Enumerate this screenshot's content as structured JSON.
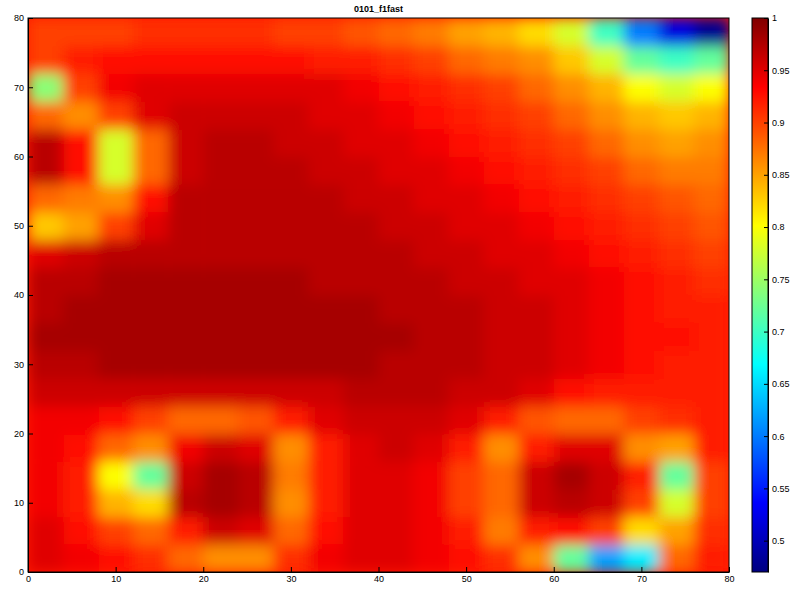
{
  "chart_data": {
    "type": "heatmap",
    "title": "0101_f1fast",
    "x": [
      2,
      6,
      10,
      14,
      18,
      22,
      26,
      30,
      34,
      38,
      42,
      46,
      50,
      54,
      58,
      62,
      66,
      70,
      74,
      78
    ],
    "y": [
      2,
      6,
      10,
      14,
      18,
      22,
      26,
      30,
      34,
      38,
      42,
      46,
      50,
      54,
      58,
      62,
      66,
      70,
      74,
      78
    ],
    "z": [
      [
        0.95,
        0.94,
        0.93,
        0.91,
        0.88,
        0.86,
        0.86,
        0.91,
        0.94,
        0.95,
        0.95,
        0.94,
        0.93,
        0.91,
        0.86,
        0.72,
        0.62,
        0.66,
        0.88,
        0.92
      ],
      [
        0.95,
        0.93,
        0.9,
        0.88,
        0.92,
        0.96,
        0.95,
        0.88,
        0.93,
        0.95,
        0.95,
        0.94,
        0.92,
        0.87,
        0.92,
        0.93,
        0.9,
        0.82,
        0.85,
        0.91
      ],
      [
        0.94,
        0.92,
        0.84,
        0.82,
        0.97,
        0.98,
        0.97,
        0.86,
        0.92,
        0.95,
        0.95,
        0.94,
        0.9,
        0.88,
        0.96,
        0.97,
        0.96,
        0.9,
        0.78,
        0.9
      ],
      [
        0.94,
        0.92,
        0.8,
        0.72,
        0.96,
        0.98,
        0.97,
        0.87,
        0.92,
        0.95,
        0.95,
        0.94,
        0.9,
        0.88,
        0.96,
        0.98,
        0.96,
        0.92,
        0.72,
        0.9
      ],
      [
        0.94,
        0.93,
        0.88,
        0.86,
        0.94,
        0.96,
        0.95,
        0.86,
        0.92,
        0.95,
        0.96,
        0.95,
        0.92,
        0.86,
        0.92,
        0.95,
        0.95,
        0.86,
        0.85,
        0.92
      ],
      [
        0.94,
        0.94,
        0.93,
        0.9,
        0.88,
        0.88,
        0.89,
        0.92,
        0.95,
        0.96,
        0.96,
        0.96,
        0.95,
        0.92,
        0.89,
        0.88,
        0.88,
        0.9,
        0.91,
        0.92
      ],
      [
        0.96,
        0.96,
        0.96,
        0.96,
        0.96,
        0.96,
        0.96,
        0.96,
        0.96,
        0.97,
        0.97,
        0.97,
        0.96,
        0.96,
        0.95,
        0.93,
        0.92,
        0.92,
        0.92,
        0.92
      ],
      [
        0.97,
        0.97,
        0.98,
        0.98,
        0.98,
        0.98,
        0.98,
        0.98,
        0.98,
        0.98,
        0.97,
        0.97,
        0.97,
        0.96,
        0.96,
        0.95,
        0.94,
        0.93,
        0.92,
        0.92
      ],
      [
        0.98,
        0.98,
        0.98,
        0.98,
        0.98,
        0.98,
        0.98,
        0.98,
        0.98,
        0.98,
        0.98,
        0.97,
        0.97,
        0.96,
        0.96,
        0.95,
        0.94,
        0.93,
        0.93,
        0.92
      ],
      [
        0.97,
        0.98,
        0.98,
        0.98,
        0.98,
        0.98,
        0.98,
        0.98,
        0.98,
        0.98,
        0.97,
        0.97,
        0.97,
        0.96,
        0.96,
        0.95,
        0.94,
        0.93,
        0.92,
        0.92
      ],
      [
        0.97,
        0.97,
        0.98,
        0.98,
        0.98,
        0.98,
        0.98,
        0.98,
        0.97,
        0.97,
        0.97,
        0.97,
        0.96,
        0.96,
        0.95,
        0.95,
        0.94,
        0.93,
        0.92,
        0.91
      ],
      [
        0.95,
        0.96,
        0.97,
        0.97,
        0.97,
        0.97,
        0.97,
        0.97,
        0.97,
        0.97,
        0.97,
        0.96,
        0.96,
        0.95,
        0.95,
        0.94,
        0.93,
        0.92,
        0.91,
        0.9
      ],
      [
        0.83,
        0.85,
        0.9,
        0.95,
        0.97,
        0.97,
        0.97,
        0.97,
        0.97,
        0.97,
        0.96,
        0.96,
        0.95,
        0.95,
        0.94,
        0.93,
        0.92,
        0.91,
        0.9,
        0.89
      ],
      [
        0.88,
        0.87,
        0.86,
        0.93,
        0.97,
        0.97,
        0.97,
        0.97,
        0.97,
        0.96,
        0.96,
        0.95,
        0.95,
        0.94,
        0.93,
        0.92,
        0.91,
        0.9,
        0.89,
        0.88
      ],
      [
        0.97,
        0.93,
        0.78,
        0.88,
        0.96,
        0.97,
        0.97,
        0.97,
        0.96,
        0.96,
        0.95,
        0.95,
        0.94,
        0.93,
        0.92,
        0.91,
        0.9,
        0.88,
        0.87,
        0.87
      ],
      [
        0.97,
        0.93,
        0.78,
        0.88,
        0.96,
        0.97,
        0.97,
        0.96,
        0.96,
        0.95,
        0.95,
        0.94,
        0.93,
        0.92,
        0.91,
        0.9,
        0.88,
        0.86,
        0.85,
        0.86
      ],
      [
        0.88,
        0.86,
        0.9,
        0.95,
        0.96,
        0.96,
        0.96,
        0.96,
        0.95,
        0.95,
        0.94,
        0.93,
        0.92,
        0.91,
        0.9,
        0.88,
        0.86,
        0.84,
        0.83,
        0.84
      ],
      [
        0.74,
        0.9,
        0.94,
        0.95,
        0.95,
        0.95,
        0.95,
        0.95,
        0.95,
        0.94,
        0.93,
        0.92,
        0.91,
        0.9,
        0.88,
        0.86,
        0.84,
        0.8,
        0.78,
        0.8
      ],
      [
        0.9,
        0.92,
        0.93,
        0.93,
        0.93,
        0.93,
        0.93,
        0.93,
        0.92,
        0.92,
        0.91,
        0.9,
        0.88,
        0.87,
        0.86,
        0.83,
        0.78,
        0.72,
        0.7,
        0.72
      ],
      [
        0.9,
        0.9,
        0.9,
        0.91,
        0.91,
        0.91,
        0.91,
        0.9,
        0.9,
        0.89,
        0.88,
        0.87,
        0.85,
        0.84,
        0.82,
        0.78,
        0.7,
        0.6,
        0.52,
        0.48
      ]
    ],
    "xlim": [
      0,
      80
    ],
    "ylim": [
      0,
      80
    ],
    "xticks": [
      0,
      10,
      20,
      30,
      40,
      50,
      60,
      70,
      80
    ],
    "yticks": [
      0,
      10,
      20,
      30,
      40,
      50,
      60,
      70,
      80
    ],
    "colorbar_range": [
      0.47,
      1
    ],
    "colorbar_ticks": [
      0.5,
      0.55,
      0.6,
      0.65,
      0.7,
      0.75,
      0.8,
      0.85,
      0.9,
      0.95,
      1
    ]
  }
}
